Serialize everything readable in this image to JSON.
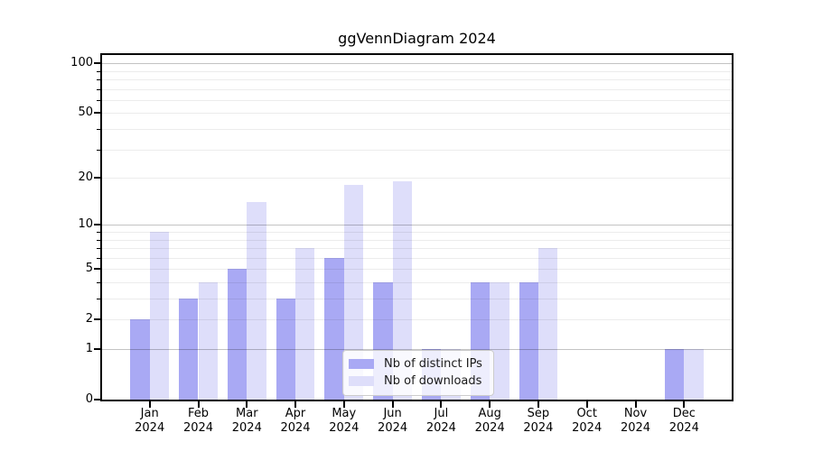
{
  "chart_data": {
    "type": "bar",
    "title": "ggVennDiagram 2024",
    "scale": "log1p",
    "categories": [
      "Jan 2024",
      "Feb 2024",
      "Mar 2024",
      "Apr 2024",
      "May 2024",
      "Jun 2024",
      "Jul 2024",
      "Aug 2024",
      "Sep 2024",
      "Oct 2024",
      "Nov 2024",
      "Dec 2024"
    ],
    "x_tick_months": [
      "Jan",
      "Feb",
      "Mar",
      "Apr",
      "May",
      "Jun",
      "Jul",
      "Aug",
      "Sep",
      "Oct",
      "Nov",
      "Dec"
    ],
    "x_tick_year": "2024",
    "series": [
      {
        "name": "Nb of distinct IPs",
        "color": "#a9a9f4",
        "values": [
          2,
          3,
          5,
          3,
          6,
          4,
          1,
          4,
          4,
          0,
          0,
          1
        ]
      },
      {
        "name": "Nb of downloads",
        "color": "#dedefa",
        "values": [
          9,
          4,
          14,
          7,
          18,
          19,
          1,
          4,
          7,
          0,
          0,
          1
        ]
      }
    ],
    "y_ticks": [
      0,
      1,
      2,
      5,
      10,
      20,
      50,
      100
    ],
    "gridlines": {
      "major": [
        1,
        10,
        100
      ],
      "minor": [
        2,
        3,
        4,
        5,
        6,
        7,
        8,
        9,
        20,
        30,
        40,
        50,
        60,
        70,
        80,
        90
      ]
    },
    "ylim": [
      0,
      112
    ],
    "legend": {
      "position": "lower center"
    }
  },
  "colors": {
    "background": "#ffffff",
    "spine": "#000000",
    "major_grid": "#c3c3c3",
    "minor_grid": "#ececec",
    "text": "#000000"
  }
}
